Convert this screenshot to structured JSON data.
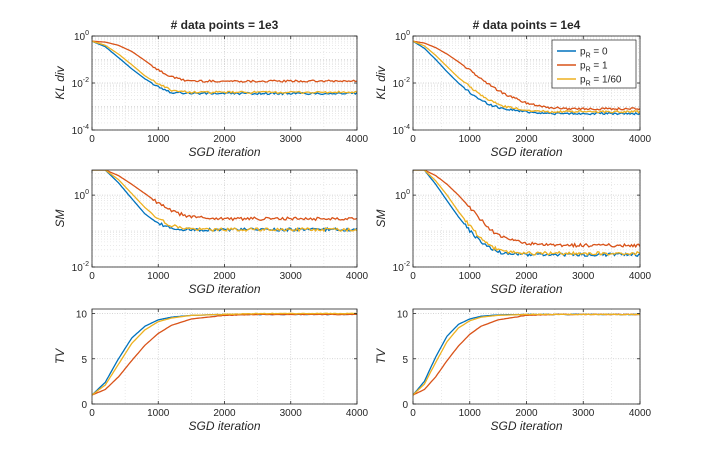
{
  "figure": {
    "series_names": [
      "p_R = 0",
      "p_R = 1",
      "p_R = 1/60"
    ],
    "series_colors": [
      "#0072bd",
      "#d95319",
      "#edb120"
    ]
  },
  "chart_data": [
    {
      "type": "line",
      "panel": "KL-1e3",
      "title": "# data points = 1e3",
      "xlabel": "SGD iteration",
      "ylabel": "KL div",
      "yscale": "log",
      "xlim": [
        0,
        4000
      ],
      "ylim": [
        0.0001,
        1
      ],
      "xticks": [
        0,
        1000,
        2000,
        3000,
        4000
      ],
      "xtick_labels": [
        "0",
        "1000",
        "2000",
        "3000",
        "4000"
      ],
      "yticks": [
        0.0001,
        0.01,
        1
      ],
      "ytick_labels": [
        [
          "10",
          "-4"
        ],
        [
          "10",
          "-2"
        ],
        [
          "10",
          "0"
        ]
      ],
      "minor_yticks": [
        0.001,
        0.1
      ],
      "x": [
        0,
        200,
        400,
        600,
        800,
        1000,
        1200,
        1400,
        1600,
        2000,
        2400,
        2800,
        3200,
        3600,
        4000
      ],
      "series": [
        {
          "name": "p_R = 0",
          "values": [
            0.6,
            0.35,
            0.12,
            0.04,
            0.015,
            0.007,
            0.004,
            0.0038,
            0.0036,
            0.0036,
            0.0036,
            0.0036,
            0.0036,
            0.0036,
            0.0036
          ]
        },
        {
          "name": "p_R = 1",
          "values": [
            0.6,
            0.55,
            0.4,
            0.22,
            0.09,
            0.035,
            0.018,
            0.013,
            0.012,
            0.012,
            0.012,
            0.012,
            0.012,
            0.012,
            0.012
          ]
        },
        {
          "name": "p_R = 1/60",
          "values": [
            0.6,
            0.4,
            0.17,
            0.06,
            0.02,
            0.009,
            0.005,
            0.0042,
            0.004,
            0.004,
            0.004,
            0.004,
            0.004,
            0.004,
            0.004
          ]
        }
      ]
    },
    {
      "type": "line",
      "panel": "KL-1e4",
      "title": "# data points = 1e4",
      "xlabel": "SGD iteration",
      "ylabel": "KL div",
      "yscale": "log",
      "xlim": [
        0,
        4000
      ],
      "ylim": [
        0.0001,
        1
      ],
      "xticks": [
        0,
        1000,
        2000,
        3000,
        4000
      ],
      "xtick_labels": [
        "0",
        "1000",
        "2000",
        "3000",
        "4000"
      ],
      "yticks": [
        0.0001,
        0.01,
        1
      ],
      "ytick_labels": [
        [
          "10",
          "-4"
        ],
        [
          "10",
          "-2"
        ],
        [
          "10",
          "0"
        ]
      ],
      "minor_yticks": [
        0.001,
        0.1
      ],
      "x": [
        0,
        200,
        400,
        600,
        800,
        1000,
        1200,
        1400,
        1600,
        2000,
        2400,
        2800,
        3200,
        3600,
        4000
      ],
      "series": [
        {
          "name": "p_R = 0",
          "values": [
            0.6,
            0.3,
            0.1,
            0.03,
            0.01,
            0.004,
            0.0018,
            0.0011,
            0.0008,
            0.0006,
            0.0005,
            0.0005,
            0.0005,
            0.0005,
            0.0005
          ]
        },
        {
          "name": "p_R = 1",
          "values": [
            0.6,
            0.5,
            0.32,
            0.17,
            0.08,
            0.035,
            0.015,
            0.007,
            0.0035,
            0.0014,
            0.0009,
            0.0008,
            0.0008,
            0.0008,
            0.0008
          ]
        },
        {
          "name": "p_R = 1/60",
          "values": [
            0.6,
            0.38,
            0.15,
            0.05,
            0.017,
            0.007,
            0.003,
            0.0016,
            0.001,
            0.0007,
            0.0006,
            0.0006,
            0.0006,
            0.0006,
            0.0006
          ]
        }
      ],
      "legend": {
        "entries": [
          "p_R = 0",
          "p_R = 1",
          "p_R = 1/60"
        ],
        "label_prefix": "p",
        "label_subscript": "R",
        "label_values": [
          " = 0",
          " = 1",
          " = 1/60"
        ],
        "placement": "top-right"
      }
    },
    {
      "type": "line",
      "panel": "SM-1e3",
      "title": "",
      "xlabel": "SGD iteration",
      "ylabel": "SM",
      "yscale": "log",
      "xlim": [
        0,
        4000
      ],
      "ylim": [
        0.01,
        5
      ],
      "xticks": [
        0,
        1000,
        2000,
        3000,
        4000
      ],
      "xtick_labels": [
        "0",
        "1000",
        "2000",
        "3000",
        "4000"
      ],
      "yticks": [
        0.01,
        1
      ],
      "ytick_labels": [
        [
          "10",
          "-2"
        ],
        [
          "10",
          "0"
        ]
      ],
      "minor_yticks": [
        0.1
      ],
      "x": [
        0,
        200,
        400,
        600,
        800,
        1000,
        1200,
        1400,
        1600,
        2000,
        2400,
        2800,
        3200,
        3600,
        4000
      ],
      "series": [
        {
          "name": "p_R = 0",
          "values": [
            5,
            5,
            2.2,
            0.8,
            0.3,
            0.16,
            0.12,
            0.11,
            0.11,
            0.11,
            0.11,
            0.11,
            0.11,
            0.11,
            0.11
          ]
        },
        {
          "name": "p_R = 1",
          "values": [
            5,
            5,
            3.5,
            2,
            1.1,
            0.6,
            0.36,
            0.27,
            0.24,
            0.22,
            0.22,
            0.22,
            0.22,
            0.22,
            0.23
          ]
        },
        {
          "name": "p_R = 1/60",
          "values": [
            5,
            5,
            2.7,
            1.1,
            0.45,
            0.22,
            0.14,
            0.12,
            0.11,
            0.11,
            0.11,
            0.11,
            0.11,
            0.11,
            0.11
          ]
        }
      ]
    },
    {
      "type": "line",
      "panel": "SM-1e4",
      "title": "",
      "xlabel": "SGD iteration",
      "ylabel": "SM",
      "yscale": "log",
      "xlim": [
        0,
        4000
      ],
      "ylim": [
        0.01,
        5
      ],
      "xticks": [
        0,
        1000,
        2000,
        3000,
        4000
      ],
      "xtick_labels": [
        "0",
        "1000",
        "2000",
        "3000",
        "4000"
      ],
      "yticks": [
        0.01,
        1
      ],
      "ytick_labels": [
        [
          "10",
          "-2"
        ],
        [
          "10",
          "0"
        ]
      ],
      "minor_yticks": [
        0.1
      ],
      "x": [
        0,
        200,
        400,
        600,
        800,
        1000,
        1200,
        1400,
        1600,
        2000,
        2400,
        2800,
        3200,
        3600,
        4000
      ],
      "series": [
        {
          "name": "p_R = 0",
          "values": [
            5,
            5,
            2,
            0.7,
            0.25,
            0.1,
            0.05,
            0.03,
            0.024,
            0.022,
            0.022,
            0.022,
            0.022,
            0.022,
            0.022
          ]
        },
        {
          "name": "p_R = 1",
          "values": [
            5,
            5,
            3.5,
            2,
            1,
            0.45,
            0.2,
            0.1,
            0.065,
            0.045,
            0.04,
            0.04,
            0.04,
            0.04,
            0.04
          ]
        },
        {
          "name": "p_R = 1/60",
          "values": [
            5,
            5,
            2.5,
            1,
            0.35,
            0.14,
            0.06,
            0.035,
            0.027,
            0.024,
            0.024,
            0.024,
            0.024,
            0.024,
            0.024
          ]
        }
      ]
    },
    {
      "type": "line",
      "panel": "TV-1e3",
      "title": "",
      "xlabel": "SGD iteration",
      "ylabel": "TV",
      "yscale": "linear",
      "xlim": [
        0,
        4000
      ],
      "ylim": [
        0,
        10.5
      ],
      "xticks": [
        0,
        1000,
        2000,
        3000,
        4000
      ],
      "xtick_labels": [
        "0",
        "1000",
        "2000",
        "3000",
        "4000"
      ],
      "yticks": [
        0,
        5,
        10
      ],
      "ytick_labels": [
        "0",
        "5",
        "10"
      ],
      "x": [
        0,
        200,
        400,
        600,
        800,
        1000,
        1200,
        1500,
        2000,
        2500,
        3000,
        3500,
        4000
      ],
      "series": [
        {
          "name": "p_R = 0",
          "values": [
            1,
            2.4,
            5,
            7.3,
            8.6,
            9.3,
            9.6,
            9.8,
            9.9,
            9.9,
            9.9,
            9.9,
            9.9
          ]
        },
        {
          "name": "p_R = 1",
          "values": [
            1,
            1.6,
            3,
            4.8,
            6.5,
            7.8,
            8.7,
            9.4,
            9.8,
            9.9,
            9.9,
            9.9,
            9.9
          ]
        },
        {
          "name": "p_R = 1/60",
          "values": [
            1,
            2.1,
            4.4,
            6.7,
            8.2,
            9.1,
            9.5,
            9.8,
            9.9,
            10,
            10,
            10,
            10
          ]
        }
      ]
    },
    {
      "type": "line",
      "panel": "TV-1e4",
      "title": "",
      "xlabel": "SGD iteration",
      "ylabel": "TV",
      "yscale": "linear",
      "xlim": [
        0,
        4000
      ],
      "ylim": [
        0,
        10.5
      ],
      "xticks": [
        0,
        1000,
        2000,
        3000,
        4000
      ],
      "xtick_labels": [
        "0",
        "1000",
        "2000",
        "3000",
        "4000"
      ],
      "yticks": [
        0,
        5,
        10
      ],
      "ytick_labels": [
        "0",
        "5",
        "10"
      ],
      "x": [
        0,
        200,
        400,
        600,
        800,
        1000,
        1200,
        1500,
        2000,
        2500,
        3000,
        3500,
        4000
      ],
      "series": [
        {
          "name": "p_R = 0",
          "values": [
            1,
            2.5,
            5.2,
            7.5,
            8.8,
            9.4,
            9.7,
            9.85,
            9.9,
            9.9,
            9.9,
            9.9,
            9.9
          ]
        },
        {
          "name": "p_R = 1",
          "values": [
            1,
            1.6,
            3,
            4.8,
            6.4,
            7.7,
            8.6,
            9.3,
            9.8,
            9.9,
            9.9,
            9.9,
            9.9
          ]
        },
        {
          "name": "p_R = 1/60",
          "values": [
            1,
            2.2,
            4.6,
            6.9,
            8.4,
            9.2,
            9.6,
            9.8,
            9.9,
            9.9,
            9.9,
            9.9,
            9.9
          ]
        }
      ]
    }
  ]
}
